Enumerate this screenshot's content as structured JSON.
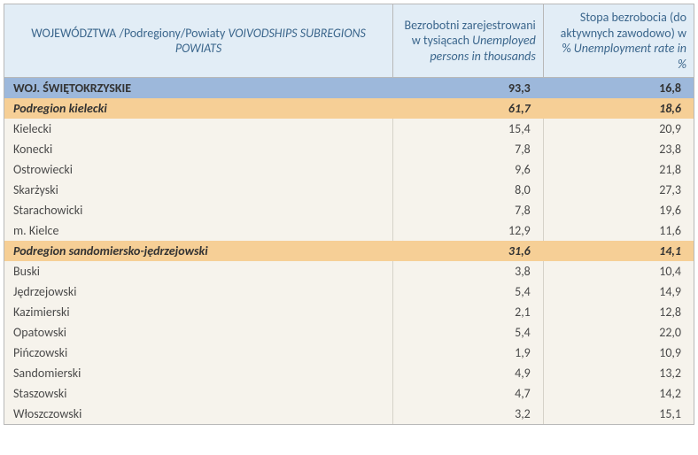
{
  "header": {
    "col1_plain": "WOJEWÓDZTWA /Podregiony/Powiaty",
    "col1_ital": "VOIVODSHIPS SUBREGIONS POWIATS",
    "col2_plain": "Bezrobotni zarejestrowani   w tysiącach",
    "col2_ital": "Unemployed persons in thousands",
    "col3_plain": "Stopa bezrobocia  (do aktywnych zawodowo) w %",
    "col3_ital": "Unemployment rate in  %"
  },
  "colors": {
    "header_bg": "#e2edf6",
    "header_text": "#3b668c",
    "voiv_bg": "#9db8db",
    "sub_bg": "#f6cf96",
    "body_bg": "#f6f3ec",
    "border": "#b8b8b8",
    "cell_border": "#d6d2c8",
    "text": "#4a4a4a"
  },
  "rows": [
    {
      "type": "voiv",
      "name": "WOJ. ŚWIĘTOKRZYSKIE",
      "unemployed": "93,3",
      "rate": "16,8"
    },
    {
      "type": "sub",
      "name": "Podregion kielecki",
      "unemployed": "61,7",
      "rate": "18,6"
    },
    {
      "type": "pow",
      "name": "Kielecki",
      "unemployed": "15,4",
      "rate": "20,9"
    },
    {
      "type": "pow",
      "name": "Konecki",
      "unemployed": "7,8",
      "rate": "23,8"
    },
    {
      "type": "pow",
      "name": "Ostrowiecki",
      "unemployed": "9,6",
      "rate": "21,8"
    },
    {
      "type": "pow",
      "name": "Skarżyski",
      "unemployed": "8,0",
      "rate": "27,3"
    },
    {
      "type": "pow",
      "name": "Starachowicki",
      "unemployed": "7,8",
      "rate": "19,6"
    },
    {
      "type": "pow",
      "name": "m. Kielce",
      "unemployed": "12,9",
      "rate": "11,6"
    },
    {
      "type": "sub",
      "name": "Podregion sandomiersko-jędrzejowski",
      "unemployed": "31,6",
      "rate": "14,1"
    },
    {
      "type": "pow",
      "name": "Buski",
      "unemployed": "3,8",
      "rate": "10,4"
    },
    {
      "type": "pow",
      "name": "Jędrzejowski",
      "unemployed": "5,4",
      "rate": "14,9"
    },
    {
      "type": "pow",
      "name": "Kazimierski",
      "unemployed": "2,1",
      "rate": "12,8"
    },
    {
      "type": "pow",
      "name": "Opatowski",
      "unemployed": "5,4",
      "rate": "22,0"
    },
    {
      "type": "pow",
      "name": "Pińczowski",
      "unemployed": "1,9",
      "rate": "10,9"
    },
    {
      "type": "pow",
      "name": "Sandomierski",
      "unemployed": "4,9",
      "rate": "13,2"
    },
    {
      "type": "pow",
      "name": "Staszowski",
      "unemployed": "4,7",
      "rate": "14,2"
    },
    {
      "type": "pow",
      "name": "Włoszczowski",
      "unemployed": "3,2",
      "rate": "15,1"
    }
  ]
}
